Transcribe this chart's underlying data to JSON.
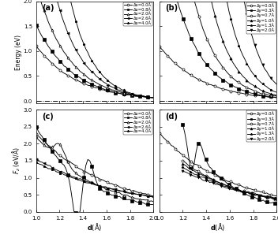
{
  "fig_size": [
    3.52,
    3.02
  ],
  "dpi": 100,
  "panel_a": {
    "label": "(a)",
    "ylabel": "Energy (eV)",
    "ylim": [
      -0.05,
      2.0
    ],
    "yticks": [
      0.0,
      0.5,
      1.0,
      1.5,
      2.0
    ],
    "xlim": [
      1.0,
      2.0
    ],
    "legend_labels": [
      "Δx=0.0Å",
      "Δx=0.8Å",
      "Δx=2.0Å",
      "Δx=2.6Å",
      "Δx=4.0Å"
    ],
    "markers": [
      "o",
      "s",
      "^",
      "<",
      "*"
    ],
    "fillstyles": [
      "none",
      "full",
      "none",
      "full",
      "full"
    ],
    "hline": 0.0
  },
  "panel_b": {
    "label": "(b)",
    "ylim": [
      -0.05,
      2.0
    ],
    "yticks": [
      0.0,
      0.5,
      1.0,
      1.5,
      2.0
    ],
    "xlim": [
      1.0,
      2.0
    ],
    "legend_labels": [
      "Δy=0.0Å",
      "Δy=0.3Å",
      "Δy=0.7Å",
      "Δy=1.0Å",
      "Δy=1.3Å",
      "Δy=2.0Å"
    ],
    "markers": [
      "o",
      "s",
      "o",
      "^",
      "*",
      "v"
    ],
    "fillstyles": [
      "none",
      "full",
      "none",
      "full",
      "full",
      "full"
    ],
    "hline": 0.0
  },
  "panel_c": {
    "label": "(c)",
    "ylabel": "F_z (eV/Å)",
    "ylim": [
      0.0,
      3.0
    ],
    "yticks": [
      0.0,
      0.5,
      1.0,
      1.5,
      2.0,
      2.5,
      3.0
    ],
    "xlim": [
      1.0,
      2.0
    ],
    "legend_labels": [
      "Δx=0.0Å",
      "Δx=0.8Å",
      "Δx=2.0Å",
      "Δx=2.6Å",
      "Δx=4.0Å"
    ],
    "markers": [
      "o",
      "s",
      "^",
      "<",
      "*"
    ],
    "fillstyles": [
      "none",
      "full",
      "none",
      "full",
      "full"
    ],
    "xlabel": "d(Å)"
  },
  "panel_d": {
    "label": "(d)",
    "ylim": [
      0.0,
      3.0
    ],
    "yticks": [
      0.0,
      0.5,
      1.0,
      1.5,
      2.0,
      2.5,
      3.0
    ],
    "xlim": [
      1.0,
      2.0
    ],
    "legend_labels": [
      "Δy=0.0Å",
      "Δy=0.3Å",
      "Δy=0.7Å",
      "Δy=1.0Å",
      "Δy=1.3Å",
      "Δy=2.0Å"
    ],
    "markers": [
      "o",
      "s",
      "o",
      "^",
      "*",
      "v"
    ],
    "fillstyles": [
      "none",
      "full",
      "none",
      "full",
      "full",
      "full"
    ],
    "xlabel": "d(Å)"
  }
}
